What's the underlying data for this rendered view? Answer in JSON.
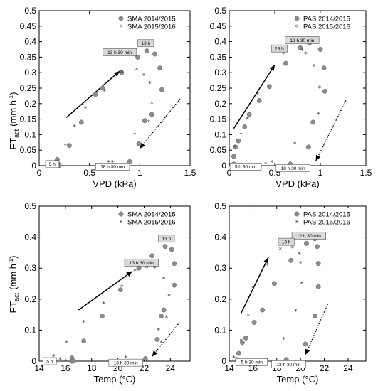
{
  "y_label_main": "ET",
  "y_label_sub": "act",
  "y_label_unit": "(mm h",
  "y_label_exp": "-1",
  "y_label_close": ")",
  "colors": {
    "dot": "#8c8c8c",
    "dot_stroke": "#6a6a6a",
    "star": "#333333",
    "box_fill": "#d9d9d9",
    "box_stroke": "#555555"
  },
  "chart_data": [
    {
      "type": "scatter",
      "xlabel": "VPD (kPa)",
      "ylabel": "ET_act (mm h-1)",
      "xlim": [
        0,
        1.5
      ],
      "ylim": [
        0,
        0.5
      ],
      "x_ticks": [
        0,
        0.5,
        1,
        1.5
      ],
      "x_tick_labels": [
        "0",
        "0.5",
        "1",
        "1.5"
      ],
      "y_ticks": [
        0,
        0.05,
        0.1,
        0.15,
        0.2,
        0.25,
        0.3,
        0.35,
        0.4,
        0.45,
        0.5
      ],
      "y_tick_labels": [
        "0",
        "0.05",
        "0.1",
        "0.15",
        "0.2",
        "0.25",
        "0.3",
        "0.35",
        "0.4",
        "0.45",
        "0.5"
      ],
      "legend_position": "top-right",
      "series": [
        {
          "name": "SMA 2014/2015",
          "marker": "circle",
          "points": [
            [
              0.18,
              0.02
            ],
            [
              0.17,
              0.0
            ],
            [
              0.18,
              0.0
            ],
            [
              0.2,
              0.0
            ],
            [
              0.3,
              0.065
            ],
            [
              0.42,
              0.14
            ],
            [
              0.56,
              0.23
            ],
            [
              0.63,
              0.25
            ],
            [
              0.82,
              0.3
            ],
            [
              0.98,
              0.35
            ],
            [
              1.07,
              0.37
            ],
            [
              1.15,
              0.36
            ],
            [
              1.2,
              0.315
            ],
            [
              1.22,
              0.245
            ],
            [
              1.12,
              0.165
            ],
            [
              1.05,
              0.145
            ],
            [
              0.99,
              0.07
            ],
            [
              0.9,
              0.013
            ]
          ]
        },
        {
          "name": "SMA 2015/2016",
          "marker": "star",
          "points": [
            [
              0.15,
              0.01
            ],
            [
              0.2,
              0.005
            ],
            [
              0.26,
              0.065
            ],
            [
              0.35,
              0.125
            ],
            [
              0.46,
              0.185
            ],
            [
              0.65,
              0.24
            ],
            [
              0.82,
              0.3
            ],
            [
              0.97,
              0.31
            ],
            [
              1.04,
              0.29
            ],
            [
              1.1,
              0.265
            ],
            [
              1.12,
              0.2
            ],
            [
              1.09,
              0.14
            ],
            [
              0.95,
              0.1
            ],
            [
              1.02,
              0.06
            ],
            [
              0.73,
              0.01
            ],
            [
              0.69,
              0.01
            ]
          ]
        }
      ],
      "annotations": [
        {
          "text": "13 h",
          "x": 1.06,
          "y": 0.395
        },
        {
          "text": "13 h 30 min",
          "x": 0.8,
          "y": 0.366
        },
        {
          "text": "5 h",
          "x": 0.13,
          "y": 0.005
        },
        {
          "text": "18 h 30 min",
          "x": 0.73,
          "y": -0.003
        }
      ],
      "arrows": [
        {
          "style": "solid",
          "from": [
            0.27,
            0.155
          ],
          "to": [
            0.8,
            0.305
          ]
        },
        {
          "style": "dotted",
          "from": [
            1.4,
            0.215
          ],
          "to": [
            1.0,
            0.055
          ]
        }
      ]
    },
    {
      "type": "scatter",
      "xlabel": "VPD (kPa)",
      "ylabel": "ET_act (mm h-1)",
      "xlim": [
        0,
        1.5
      ],
      "ylim": [
        0,
        0.5
      ],
      "x_ticks": [
        0,
        0.5,
        1,
        1.5
      ],
      "x_tick_labels": [
        "0",
        "0.5",
        "1",
        "1.5"
      ],
      "y_ticks": [
        0,
        0.05,
        0.1,
        0.15,
        0.2,
        0.25,
        0.3,
        0.35,
        0.4,
        0.45,
        0.5
      ],
      "y_tick_labels": [
        "0",
        "0.05",
        "0.1",
        "0.15",
        "0.2",
        "0.25",
        "0.3",
        "0.35",
        "0.4",
        "0.45",
        "0.5"
      ],
      "legend_position": "top-right",
      "series": [
        {
          "name": "PAS 2014/2015",
          "marker": "circle",
          "points": [
            [
              0.05,
              0.03
            ],
            [
              0.07,
              0.06
            ],
            [
              0.1,
              0.08
            ],
            [
              0.17,
              0.125
            ],
            [
              0.22,
              0.165
            ],
            [
              0.33,
              0.21
            ],
            [
              0.44,
              0.255
            ],
            [
              0.62,
              0.33
            ],
            [
              0.78,
              0.38
            ],
            [
              0.88,
              0.395
            ],
            [
              1.0,
              0.375
            ],
            [
              1.04,
              0.315
            ],
            [
              1.05,
              0.24
            ],
            [
              0.92,
              0.14
            ],
            [
              0.87,
              0.06
            ],
            [
              0.67,
              0.005
            ],
            [
              0.05,
              0.005
            ]
          ]
        },
        {
          "name": "PAS 2015/2016",
          "marker": "star",
          "points": [
            [
              0.06,
              0.06
            ],
            [
              0.13,
              0.1
            ],
            [
              0.2,
              0.15
            ],
            [
              0.31,
              0.23
            ],
            [
              0.47,
              0.31
            ],
            [
              0.6,
              0.36
            ],
            [
              0.8,
              0.37
            ],
            [
              0.84,
              0.36
            ],
            [
              0.93,
              0.32
            ],
            [
              0.99,
              0.25
            ],
            [
              0.98,
              0.165
            ],
            [
              0.72,
              0.07
            ],
            [
              0.4,
              0.005
            ],
            [
              0.47,
              0.01
            ]
          ]
        }
      ],
      "annotations": [
        {
          "text": "12 h 30 min",
          "x": 0.8,
          "y": 0.405
        },
        {
          "text": "13 h",
          "x": 0.55,
          "y": 0.378
        },
        {
          "text": "5 h 30 min",
          "x": 0.18,
          "y": -0.003
        },
        {
          "text": "18 h 30 min",
          "x": 0.7,
          "y": -0.008
        }
      ],
      "arrows": [
        {
          "style": "solid",
          "from": [
            0.05,
            0.12
          ],
          "to": [
            0.5,
            0.325
          ]
        },
        {
          "style": "dotted",
          "from": [
            1.28,
            0.21
          ],
          "to": [
            0.95,
            0.015
          ]
        }
      ]
    },
    {
      "type": "scatter",
      "xlabel": "Temp (°C)",
      "ylabel": "ET_act (mm h-1)",
      "xlim": [
        14,
        25.5
      ],
      "ylim": [
        0,
        0.5
      ],
      "x_ticks": [
        14,
        16,
        18,
        20,
        22,
        24
      ],
      "x_tick_labels": [
        "14",
        "16",
        "18",
        "20",
        "22",
        "24"
      ],
      "y_ticks": [
        0,
        0.1,
        0.2,
        0.3,
        0.4,
        0.5
      ],
      "y_tick_labels": [
        "0",
        "0.1",
        "0.2",
        "0.3",
        "0.4",
        "0.5"
      ],
      "legend_position": "top-right",
      "series": [
        {
          "name": "SMA 2014/2015",
          "marker": "circle",
          "points": [
            [
              16.5,
              0.01
            ],
            [
              16.5,
              0.0
            ],
            [
              16.6,
              0.0
            ],
            [
              17.4,
              0.065
            ],
            [
              18.8,
              0.145
            ],
            [
              20.2,
              0.23
            ],
            [
              21.6,
              0.3
            ],
            [
              22.6,
              0.34
            ],
            [
              23.6,
              0.37
            ],
            [
              24.1,
              0.36
            ],
            [
              24.3,
              0.315
            ],
            [
              24.3,
              0.245
            ],
            [
              23.5,
              0.165
            ],
            [
              23.3,
              0.145
            ],
            [
              23.0,
              0.07
            ],
            [
              22.1,
              0.008
            ]
          ]
        },
        {
          "name": "SMA 2015/2016",
          "marker": "star",
          "points": [
            [
              15.1,
              0.015
            ],
            [
              15.2,
              0.005
            ],
            [
              15.6,
              0.005
            ],
            [
              16.1,
              0.06
            ],
            [
              17.4,
              0.125
            ],
            [
              18.9,
              0.185
            ],
            [
              20.3,
              0.24
            ],
            [
              21.3,
              0.29
            ],
            [
              22.2,
              0.3
            ],
            [
              22.8,
              0.3
            ],
            [
              23.5,
              0.265
            ],
            [
              23.9,
              0.21
            ],
            [
              23.7,
              0.14
            ],
            [
              23.1,
              0.1
            ],
            [
              23.3,
              0.06
            ],
            [
              20.6,
              0.01
            ]
          ]
        }
      ],
      "annotations": [
        {
          "text": "13 h",
          "x": 23.7,
          "y": 0.395
        },
        {
          "text": "13 h 30 min",
          "x": 21.8,
          "y": 0.318
        },
        {
          "text": "5 h",
          "x": 14.8,
          "y": 0.0
        },
        {
          "text": "18 h 30 min",
          "x": 20.6,
          "y": -0.005
        }
      ],
      "arrows": [
        {
          "style": "solid",
          "from": [
            17.0,
            0.165
          ],
          "to": [
            21.1,
            0.29
          ]
        },
        {
          "style": "dotted",
          "from": [
            24.7,
            0.125
          ],
          "to": [
            22.6,
            0.015
          ]
        }
      ]
    },
    {
      "type": "scatter",
      "xlabel": "Temp (°C)",
      "ylabel": "ET_act (mm h-1)",
      "xlim": [
        14,
        25.5
      ],
      "ylim": [
        0,
        0.5
      ],
      "x_ticks": [
        14,
        16,
        18,
        20,
        22,
        24
      ],
      "x_tick_labels": [
        "14",
        "16",
        "18",
        "20",
        "22",
        "24"
      ],
      "y_ticks": [
        0,
        0.1,
        0.2,
        0.3,
        0.4,
        0.5
      ],
      "y_tick_labels": [
        "0",
        "0.1",
        "0.2",
        "0.3",
        "0.4",
        "0.5"
      ],
      "legend_position": "top-right",
      "series": [
        {
          "name": "PAS 2014/2015",
          "marker": "circle",
          "points": [
            [
              14.7,
              0.005
            ],
            [
              14.8,
              0.025
            ],
            [
              15.1,
              0.06
            ],
            [
              15.4,
              0.075
            ],
            [
              16.1,
              0.125
            ],
            [
              16.8,
              0.165
            ],
            [
              17.8,
              0.25
            ],
            [
              19.2,
              0.325
            ],
            [
              20.5,
              0.38
            ],
            [
              21.2,
              0.395
            ],
            [
              21.4,
              0.37
            ],
            [
              21.5,
              0.315
            ],
            [
              21.5,
              0.24
            ],
            [
              21.2,
              0.145
            ],
            [
              20.4,
              0.055
            ],
            [
              18.8,
              0.005
            ]
          ]
        },
        {
          "name": "PAS 2015/2016",
          "marker": "star",
          "points": [
            [
              14.4,
              0.01
            ],
            [
              15.0,
              0.065
            ],
            [
              15.6,
              0.145
            ],
            [
              16.0,
              0.235
            ],
            [
              17.2,
              0.31
            ],
            [
              18.3,
              0.36
            ],
            [
              19.3,
              0.365
            ],
            [
              19.9,
              0.345
            ],
            [
              20.0,
              0.315
            ],
            [
              20.1,
              0.25
            ],
            [
              19.6,
              0.16
            ],
            [
              18.6,
              0.07
            ],
            [
              17.0,
              0.005
            ]
          ]
        }
      ],
      "annotations": [
        {
          "text": "12 h 30 min",
          "x": 20.7,
          "y": 0.405
        },
        {
          "text": "13 h",
          "x": 18.8,
          "y": 0.385
        },
        {
          "text": "5 h 30 min",
          "x": 15.9,
          "y": -0.003
        },
        {
          "text": "18 h 30 min",
          "x": 19.0,
          "y": -0.01
        }
      ],
      "arrows": [
        {
          "style": "solid",
          "from": [
            15.0,
            0.155
          ],
          "to": [
            17.3,
            0.335
          ]
        },
        {
          "style": "dotted",
          "from": [
            22.3,
            0.185
          ],
          "to": [
            20.4,
            0.02
          ]
        }
      ]
    }
  ]
}
